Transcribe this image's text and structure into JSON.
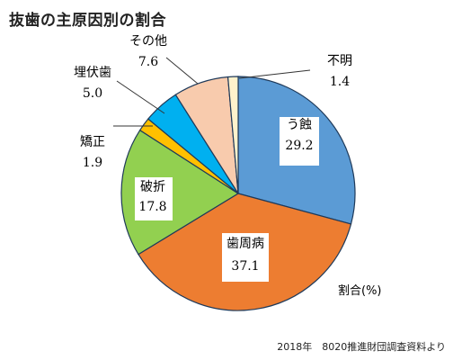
{
  "chart_data": {
    "type": "pie",
    "title": "抜歯の主原因別の割合",
    "unit_label": "割合(%)",
    "source": "2018年　8020推進財団調査資料より",
    "slices": [
      {
        "name": "う蝕",
        "value": 29.2,
        "display": "29.2",
        "color": "#5b9bd5"
      },
      {
        "name": "歯周病",
        "value": 37.1,
        "display": "37.1",
        "color": "#ed7d31"
      },
      {
        "name": "破折",
        "value": 17.8,
        "display": "17.8",
        "color": "#92d050"
      },
      {
        "name": "矯正",
        "value": 1.9,
        "display": "1.9",
        "color": "#ffc000"
      },
      {
        "name": "埋伏歯",
        "value": 5.0,
        "display": "5.0",
        "color": "#00b0f0"
      },
      {
        "name": "その他",
        "value": 7.6,
        "display": "7.6",
        "color": "#f8cbad"
      },
      {
        "name": "不明",
        "value": 1.4,
        "display": "1.4",
        "color": "#fff2cc"
      }
    ]
  }
}
